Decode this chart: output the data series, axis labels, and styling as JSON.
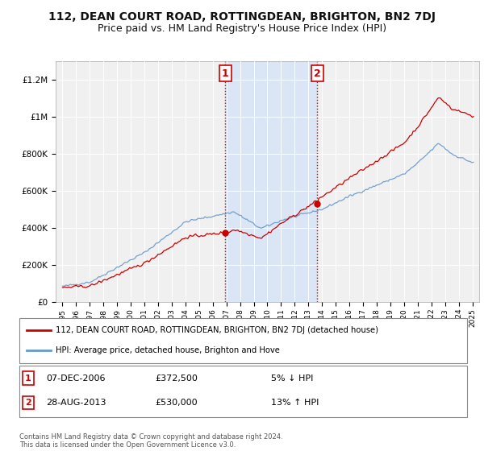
{
  "title": "112, DEAN COURT ROAD, ROTTINGDEAN, BRIGHTON, BN2 7DJ",
  "subtitle": "Price paid vs. HM Land Registry's House Price Index (HPI)",
  "legend_line1": "112, DEAN COURT ROAD, ROTTINGDEAN, BRIGHTON, BN2 7DJ (detached house)",
  "legend_line2": "HPI: Average price, detached house, Brighton and Hove",
  "footnote": "Contains HM Land Registry data © Crown copyright and database right 2024.\nThis data is licensed under the Open Government Licence v3.0.",
  "sale1_date": "07-DEC-2006",
  "sale1_price": 372500,
  "sale1_pct": "5% ↓ HPI",
  "sale2_date": "28-AUG-2013",
  "sale2_price": 530000,
  "sale2_pct": "13% ↑ HPI",
  "sale1_year": 2006.92,
  "sale2_year": 2013.65,
  "ylim": [
    0,
    1300000
  ],
  "xlim_start": 1994.5,
  "xlim_end": 2025.5,
  "background_color": "#ffffff",
  "plot_bg_color": "#f0f0f0",
  "shade_color": "#dae6f5",
  "red_color": "#cc0000",
  "blue_color": "#6699cc",
  "title_fontsize": 10,
  "subtitle_fontsize": 9
}
